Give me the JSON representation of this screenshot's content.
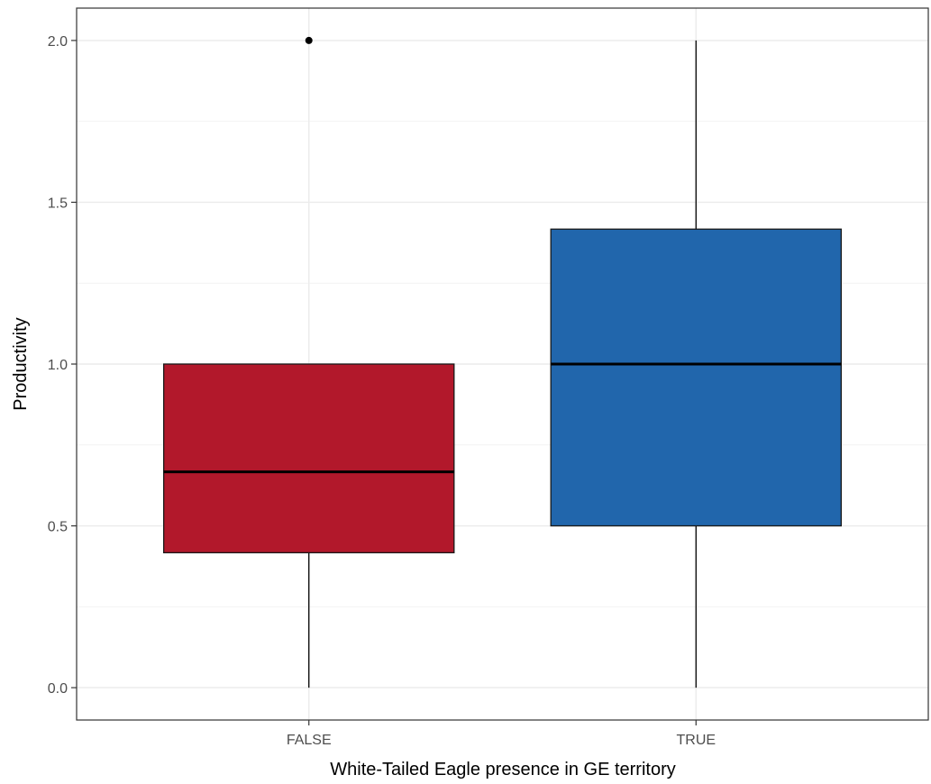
{
  "chart_data": {
    "type": "boxplot",
    "title": "",
    "xlabel": "White-Tailed Eagle presence in GE territory",
    "ylabel": "Productivity",
    "ylim": [
      -0.1,
      2.1
    ],
    "yticks": [
      0.0,
      0.5,
      1.0,
      1.5,
      2.0
    ],
    "ytick_labels": [
      "0.0",
      "0.5",
      "1.0",
      "1.5",
      "2.0"
    ],
    "grid": true,
    "legend": "none",
    "categories": [
      "FALSE",
      "TRUE"
    ],
    "boxes": [
      {
        "category": "FALSE",
        "color": "#b2182b",
        "whisker_low": 0.0,
        "q1": 0.417,
        "median": 0.667,
        "q3": 1.0,
        "whisker_high": 1.0,
        "outliers": [
          2.0
        ]
      },
      {
        "category": "TRUE",
        "color": "#2166ac",
        "whisker_low": 0.0,
        "q1": 0.5,
        "median": 1.0,
        "q3": 1.417,
        "whisker_high": 2.0,
        "outliers": []
      }
    ]
  }
}
